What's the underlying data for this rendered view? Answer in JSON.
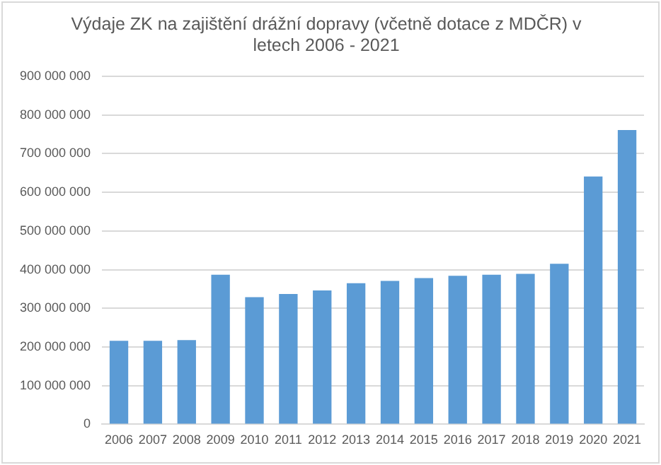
{
  "chart_data": {
    "type": "bar",
    "title": "Výdaje ZK na zajištění drážní dopravy (včetně dotace z MDČR) v letech 2006 - 2021",
    "categories": [
      "2006",
      "2007",
      "2008",
      "2009",
      "2010",
      "2011",
      "2012",
      "2013",
      "2014",
      "2015",
      "2016",
      "2017",
      "2018",
      "2019",
      "2020",
      "2021"
    ],
    "values": [
      216000000,
      216000000,
      218000000,
      387000000,
      329000000,
      337000000,
      346000000,
      365000000,
      371000000,
      378000000,
      384000000,
      387000000,
      389000000,
      415000000,
      641000000,
      761000000
    ],
    "color": "#5b9bd5",
    "ylim": [
      0,
      900000000
    ],
    "yticks": [
      0,
      {
        "value": 100000000,
        "label": "100 000 000"
      },
      {
        "value": 200000000,
        "label": "200 000 000"
      },
      {
        "value": 300000000,
        "label": "300 000 000"
      },
      {
        "value": 400000000,
        "label": "400 000 000"
      },
      {
        "value": 500000000,
        "label": "500 000 000"
      },
      {
        "value": 600000000,
        "label": "600 000 000"
      },
      {
        "value": 700000000,
        "label": "700 000 000"
      },
      {
        "value": 800000000,
        "label": "800 000 000"
      },
      {
        "value": 900000000,
        "label": "900 000 000"
      }
    ],
    "grid": "y",
    "legend": false
  }
}
